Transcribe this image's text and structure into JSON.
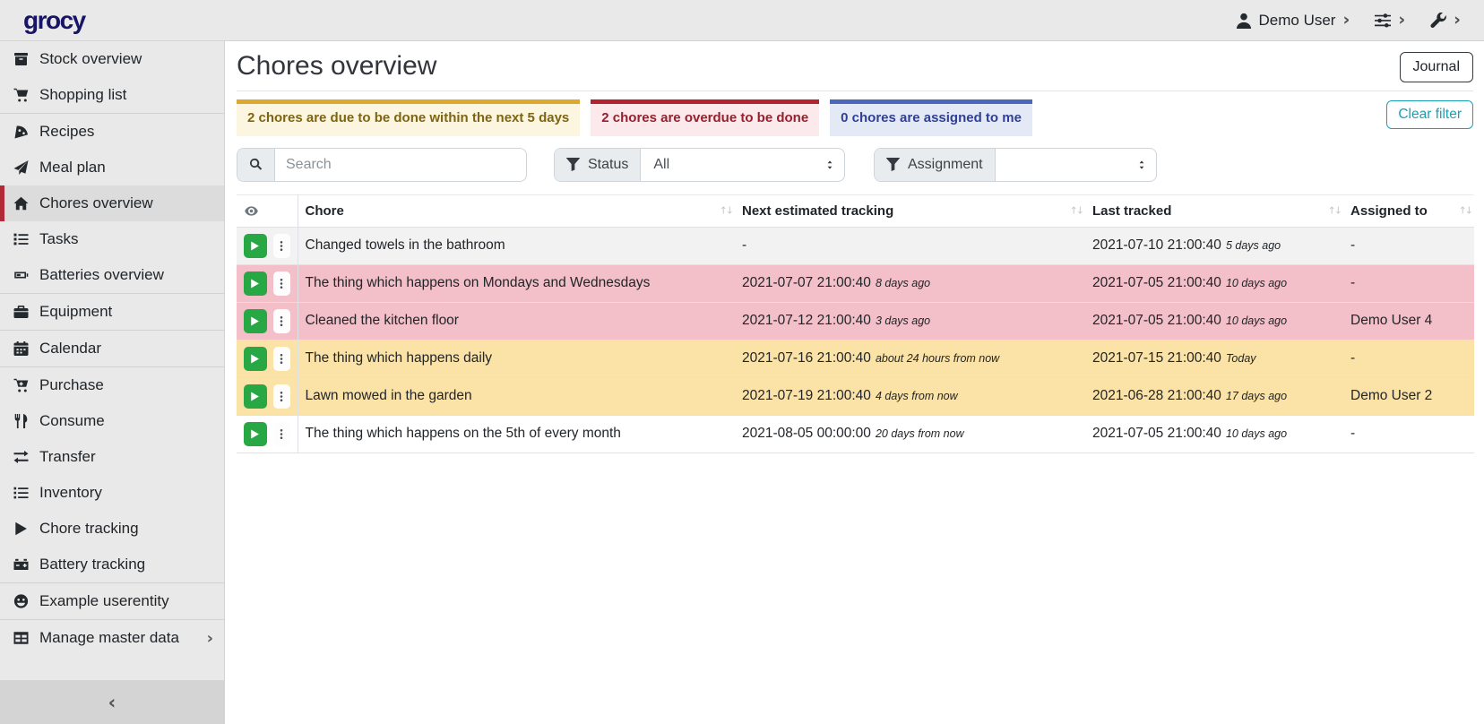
{
  "topbar": {
    "logo": "grocy",
    "user_label": "Demo User"
  },
  "sidebar": {
    "items": [
      {
        "label": "Stock overview",
        "icon": "box"
      },
      {
        "label": "Shopping list",
        "icon": "cart"
      },
      {
        "label": "Recipes",
        "icon": "pizza"
      },
      {
        "label": "Meal plan",
        "icon": "plane"
      },
      {
        "label": "Chores overview",
        "icon": "home"
      },
      {
        "label": "Tasks",
        "icon": "tasks"
      },
      {
        "label": "Batteries overview",
        "icon": "battery"
      },
      {
        "label": "Equipment",
        "icon": "toolbox"
      },
      {
        "label": "Calendar",
        "icon": "calendar"
      },
      {
        "label": "Purchase",
        "icon": "cart-plus"
      },
      {
        "label": "Consume",
        "icon": "utensils"
      },
      {
        "label": "Transfer",
        "icon": "exchange"
      },
      {
        "label": "Inventory",
        "icon": "list"
      },
      {
        "label": "Chore tracking",
        "icon": "play"
      },
      {
        "label": "Battery tracking",
        "icon": "car-battery"
      },
      {
        "label": "Example userentity",
        "icon": "smile"
      },
      {
        "label": "Manage master data",
        "icon": "table"
      }
    ]
  },
  "header": {
    "title": "Chores overview",
    "journal_button": "Journal"
  },
  "summary_cards": [
    {
      "text": "2 chores are due to be done within the next 5 days",
      "color": "#dca92c"
    },
    {
      "text": "2 chores are overdue to be done",
      "color": "#b4212f"
    },
    {
      "text": "0 chores are assigned to me",
      "color": "#4a69bd"
    }
  ],
  "filters": {
    "clear_button": "Clear filter",
    "search": {
      "placeholder": "Search"
    },
    "status": {
      "label": "Status",
      "value": "All"
    },
    "assignment": {
      "label": "Assignment",
      "value": ""
    }
  },
  "table": {
    "columns": [
      "Chore",
      "Next estimated tracking",
      "Last tracked",
      "Assigned to"
    ],
    "rows": [
      {
        "chore": "Changed towels in the bathroom",
        "next": "-",
        "next_relative": "",
        "last": "2021-07-10 21:00:40",
        "last_relative": "5 days ago",
        "assigned": "-",
        "status": "none"
      },
      {
        "chore": "The thing which happens on Mondays and Wednesdays",
        "next": "2021-07-07 21:00:40",
        "next_relative": "8 days ago",
        "last": "2021-07-05 21:00:40",
        "last_relative": "10 days ago",
        "assigned": "-",
        "status": "overdue"
      },
      {
        "chore": "Cleaned the kitchen floor",
        "next": "2021-07-12 21:00:40",
        "next_relative": "3 days ago",
        "last": "2021-07-05 21:00:40",
        "last_relative": "10 days ago",
        "assigned": "Demo User 4",
        "status": "overdue"
      },
      {
        "chore": "The thing which happens daily",
        "next": "2021-07-16 21:00:40",
        "next_relative": "about 24 hours from now",
        "last": "2021-07-15 21:00:40",
        "last_relative": "Today",
        "assigned": "-",
        "status": "due"
      },
      {
        "chore": "Lawn mowed in the garden",
        "next": "2021-07-19 21:00:40",
        "next_relative": "4 days from now",
        "last": "2021-06-28 21:00:40",
        "last_relative": "17 days ago",
        "assigned": "Demo User 2",
        "status": "due"
      },
      {
        "chore": "The thing which happens on the 5th of every month",
        "next": "2021-08-05 00:00:00",
        "next_relative": "20 days from now",
        "last": "2021-07-05 21:00:40",
        "last_relative": "10 days ago",
        "assigned": "-",
        "status": "none"
      }
    ]
  },
  "colors": {
    "success_button": "#28a745",
    "info_outline": "#17a2b8",
    "overdue_row": "#f3bfc8",
    "due_row": "#fbe2a6",
    "active_nav_accent": "#b02a37",
    "logo": "#181466"
  }
}
